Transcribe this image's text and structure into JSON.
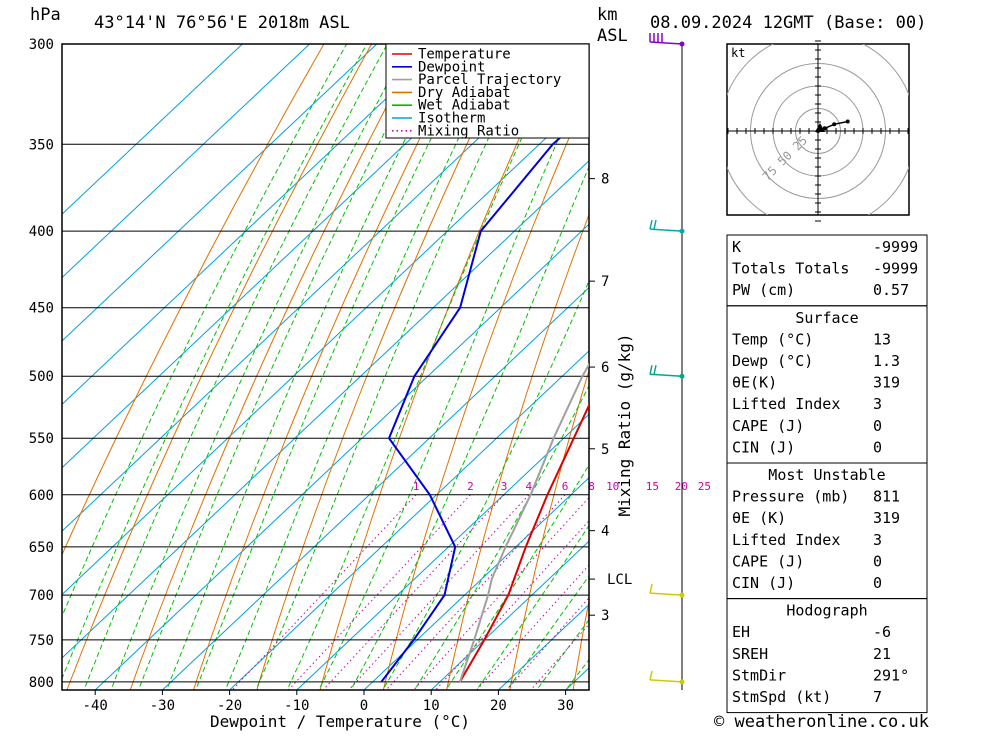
{
  "header": {
    "pressure_unit": "hPa",
    "location": "43°14'N  76°56'E  2018m  ASL",
    "km_label": "km",
    "asl_label": "ASL",
    "datetime": "08.09.2024  12GMT  (Base: 00)"
  },
  "footer": {
    "credit": "© weatheronline.co.uk"
  },
  "chart_data": {
    "type": "line",
    "xlabel": "Dewpoint / Temperature (°C)",
    "ylabel": "Mixing Ratio (g/kg)",
    "pressure_axis": {
      "levels": [
        300,
        350,
        400,
        450,
        500,
        550,
        600,
        650,
        700,
        750,
        800
      ],
      "range": [
        300,
        810
      ],
      "scale": "log"
    },
    "temperature_axis": {
      "ticks": [
        -40,
        -30,
        -20,
        -10,
        0,
        10,
        20,
        30
      ]
    },
    "height_km_ticks": [
      {
        "label": "8",
        "p": 369
      },
      {
        "label": "7",
        "p": 432
      },
      {
        "label": "6",
        "p": 493
      },
      {
        "label": "5",
        "p": 559
      },
      {
        "label": "4",
        "p": 634
      },
      {
        "label": "LCL",
        "p": 683
      },
      {
        "label": "3",
        "p": 722
      }
    ],
    "mixing_ratio_labels": [
      "1",
      "2",
      "3",
      "4",
      "6",
      "8",
      "10",
      "15",
      "20",
      "25"
    ],
    "legend": [
      "Temperature",
      "Dewpoint",
      "Parcel Trajectory",
      "Dry Adiabat",
      "Wet Adiabat",
      "Isotherm",
      "Mixing Ratio"
    ],
    "legend_position": "top-right",
    "series": [
      {
        "name": "Temperature",
        "color": "#dd0000",
        "points": [
          [
            300,
            -29
          ],
          [
            350,
            -26
          ],
          [
            400,
            -23
          ],
          [
            450,
            -18.5
          ],
          [
            500,
            -14
          ],
          [
            550,
            -8.5
          ],
          [
            600,
            -3.5
          ],
          [
            650,
            1.5
          ],
          [
            700,
            6.5
          ],
          [
            750,
            10
          ],
          [
            800,
            13
          ]
        ]
      },
      {
        "name": "Dewpoint",
        "color": "#0000dd",
        "points": [
          [
            300,
            -57
          ],
          [
            350,
            -58
          ],
          [
            400,
            -55
          ],
          [
            450,
            -46
          ],
          [
            500,
            -42
          ],
          [
            550,
            -36
          ],
          [
            600,
            -21
          ],
          [
            650,
            -9
          ],
          [
            700,
            -3
          ],
          [
            750,
            -0.5
          ],
          [
            800,
            1.3
          ]
        ]
      },
      {
        "name": "Parcel Trajectory",
        "color": "#a0a0a0",
        "points": [
          [
            300,
            -36
          ],
          [
            350,
            -32
          ],
          [
            400,
            -27
          ],
          [
            450,
            -22
          ],
          [
            500,
            -17
          ],
          [
            550,
            -11.5
          ],
          [
            600,
            -6
          ],
          [
            650,
            -1.5
          ],
          [
            683,
            1.5
          ],
          [
            700,
            3.5
          ],
          [
            750,
            8.5
          ],
          [
            800,
            13
          ]
        ]
      }
    ],
    "wind_barbs": [
      {
        "p": 300,
        "color": "#8800cc"
      },
      {
        "p": 400,
        "color": "#00aaaa"
      },
      {
        "p": 500,
        "color": "#00aa88"
      },
      {
        "p": 700,
        "color": "#cccc00"
      },
      {
        "p": 800,
        "color": "#cccc00"
      }
    ],
    "hodograph": {
      "unit": "kt",
      "ring_labels": [
        "25",
        "50",
        "75"
      ],
      "trace": [
        [
          0,
          0
        ],
        [
          5,
          2
        ],
        [
          12,
          5
        ],
        [
          22,
          7
        ]
      ]
    }
  },
  "indices": {
    "general": [
      {
        "label": "K",
        "value": "-9999"
      },
      {
        "label": "Totals Totals",
        "value": "-9999"
      },
      {
        "label": "PW (cm)",
        "value": "0.57"
      }
    ],
    "surface_title": "Surface",
    "surface": [
      {
        "label": "Temp (°C)",
        "value": "13"
      },
      {
        "label": "Dewp (°C)",
        "value": "1.3"
      },
      {
        "label": "θE(K)",
        "value": "319"
      },
      {
        "label": "Lifted Index",
        "value": "3"
      },
      {
        "label": "CAPE (J)",
        "value": "0"
      },
      {
        "label": "CIN (J)",
        "value": "0"
      }
    ],
    "unstable_title": "Most Unstable",
    "unstable": [
      {
        "label": "Pressure (mb)",
        "value": "811"
      },
      {
        "label": "θE (K)",
        "value": "319"
      },
      {
        "label": "Lifted Index",
        "value": "3"
      },
      {
        "label": "CAPE (J)",
        "value": "0"
      },
      {
        "label": "CIN (J)",
        "value": "0"
      }
    ],
    "hodo_title": "Hodograph",
    "hodo": [
      {
        "label": "EH",
        "value": "-6"
      },
      {
        "label": "SREH",
        "value": "21"
      },
      {
        "label": "StmDir",
        "value": "291°"
      },
      {
        "label": "StmSpd (kt)",
        "value": "7"
      }
    ]
  }
}
